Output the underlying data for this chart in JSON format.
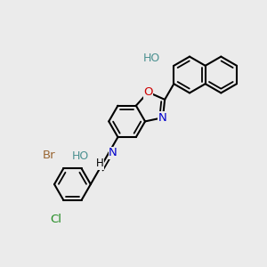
{
  "background_color": "#ebebeb",
  "bond_color": "#000000",
  "lw": 1.5,
  "lw_inner": 1.3,
  "BL": 0.068,
  "atoms": {
    "HO_naph": {
      "symbol": "HO",
      "color": "#4a9090",
      "fontsize": 9.5,
      "ha": "right",
      "va": "center"
    },
    "O_box": {
      "symbol": "O",
      "color": "#cc0000",
      "fontsize": 9.5,
      "ha": "center",
      "va": "center"
    },
    "N_box": {
      "symbol": "N",
      "color": "#0000cc",
      "fontsize": 9.5,
      "ha": "center",
      "va": "center"
    },
    "N_imine": {
      "symbol": "N",
      "color": "#0000cc",
      "fontsize": 9.5,
      "ha": "left",
      "va": "center"
    },
    "H_imine": {
      "symbol": "H",
      "color": "#000000",
      "fontsize": 9.5,
      "ha": "right",
      "va": "center"
    },
    "HO_phen": {
      "symbol": "HO",
      "color": "#4a9090",
      "fontsize": 9.5,
      "ha": "right",
      "va": "center"
    },
    "Br_phen": {
      "symbol": "Br",
      "color": "#996633",
      "fontsize": 9.5,
      "ha": "right",
      "va": "center"
    },
    "Cl_phen": {
      "symbol": "Cl",
      "color": "#228b22",
      "fontsize": 9.5,
      "ha": "center",
      "va": "top"
    }
  },
  "figsize": [
    3.0,
    3.0
  ],
  "dpi": 100
}
